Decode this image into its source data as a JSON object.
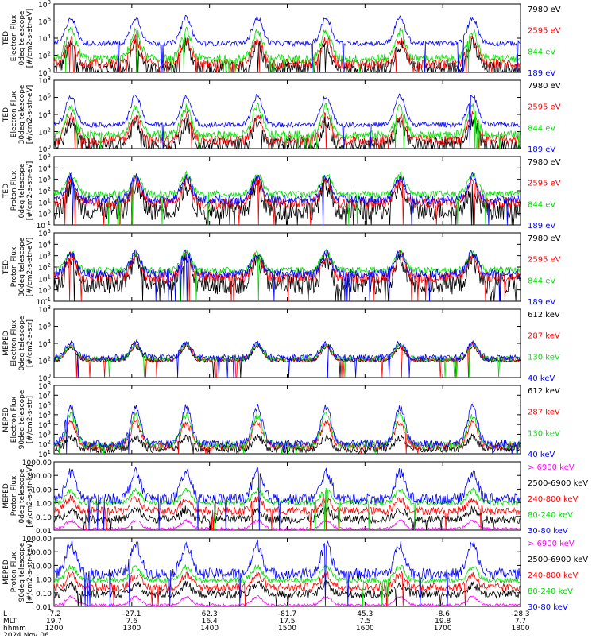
{
  "chart_data": {
    "type": "line",
    "date": "2024 Nov 06",
    "x_axis_labels": {
      "row_labels": [
        "L",
        "MLT",
        "hhmm"
      ],
      "ticks": [
        {
          "lon": "-7.2",
          "mlt": "19.7",
          "time": "1200"
        },
        {
          "lon": "-27.1",
          "mlt": "7.6",
          "time": "1300"
        },
        {
          "lon": "62.3",
          "mlt": "16.4",
          "time": "1400"
        },
        {
          "lon": "-81.7",
          "mlt": "17.5",
          "time": "1500"
        },
        {
          "lon": "45.3",
          "mlt": "7.5",
          "time": "1600"
        },
        {
          "lon": "-8.6",
          "mlt": "19.8",
          "time": "1700"
        },
        {
          "lon": "-28.3",
          "mlt": "7.7",
          "time": "1800"
        }
      ]
    },
    "xlim_minutes": [
      0,
      360
    ],
    "passes_minutes": [
      13,
      63,
      102,
      157,
      210,
      267,
      323
    ],
    "panels": [
      {
        "id": "ted-e-0",
        "ylabel": [
          "TED",
          "Electron Flux",
          "0deg telescope",
          "[#/cm2-s-str-eV]"
        ],
        "ylim_log": [
          0,
          8
        ],
        "ticks": [
          "10^0",
          "10^2",
          "10^4",
          "10^6",
          "10^8"
        ],
        "series": [
          {
            "name": "7980 eV",
            "color": "#000000",
            "base": 0.4,
            "peak": 3.2,
            "noise": 0.9
          },
          {
            "name": "2595 eV",
            "color": "#ff0000",
            "base": 1.0,
            "peak": 3.8,
            "noise": 0.6
          },
          {
            "name": "844 eV",
            "color": "#00dd00",
            "base": 1.6,
            "peak": 4.8,
            "noise": 0.5
          },
          {
            "name": "189 eV",
            "color": "#0000ff",
            "base": 3.4,
            "peak": 6.4,
            "noise": 0.3
          }
        ]
      },
      {
        "id": "ted-e-30",
        "ylabel": [
          "TED",
          "Electron Flux",
          "30deg telescope",
          "[#/cm2-s-str-eV]"
        ],
        "ylim_log": [
          0,
          8
        ],
        "ticks": [
          "10^0",
          "10^2",
          "10^4",
          "10^6",
          "10^8"
        ],
        "series": [
          {
            "name": "7980 eV",
            "color": "#000000",
            "base": 0.4,
            "peak": 3.0,
            "noise": 0.9
          },
          {
            "name": "2595 eV",
            "color": "#ff0000",
            "base": 1.0,
            "peak": 3.8,
            "noise": 0.6
          },
          {
            "name": "844 eV",
            "color": "#00dd00",
            "base": 1.6,
            "peak": 4.8,
            "noise": 0.5
          },
          {
            "name": "189 eV",
            "color": "#0000ff",
            "base": 2.8,
            "peak": 6.2,
            "noise": 0.3
          }
        ]
      },
      {
        "id": "ted-p-0",
        "ylabel": [
          "TED",
          "Proton Flux",
          "0deg telescope",
          "[#/cm2-s-str-eV]"
        ],
        "ylim_log": [
          -1,
          5
        ],
        "ticks": [
          "10^-1",
          "10^0",
          "10^1",
          "10^2",
          "10^3",
          "10^4",
          "10^5"
        ],
        "series": [
          {
            "name": "7980 eV",
            "color": "#000000",
            "base": 0.3,
            "peak": 2.4,
            "noise": 0.9
          },
          {
            "name": "2595 eV",
            "color": "#ff0000",
            "base": 0.9,
            "peak": 2.9,
            "noise": 0.5
          },
          {
            "name": "844 eV",
            "color": "#00dd00",
            "base": 1.7,
            "peak": 3.4,
            "noise": 0.3
          },
          {
            "name": "189 eV",
            "color": "#0000ff",
            "base": 1.2,
            "peak": 3.2,
            "noise": 0.4
          }
        ]
      },
      {
        "id": "ted-p-30",
        "ylabel": [
          "TED",
          "Proton Flux",
          "30deg telescope",
          "[#/cm2-s-str-eV]"
        ],
        "ylim_log": [
          -1,
          5
        ],
        "ticks": [
          "10^-1",
          "10^0",
          "10^1",
          "10^2",
          "10^3",
          "10^4",
          "10^5"
        ],
        "series": [
          {
            "name": "7980 eV",
            "color": "#000000",
            "base": 0.5,
            "peak": 2.6,
            "noise": 0.9
          },
          {
            "name": "2595 eV",
            "color": "#ff0000",
            "base": 1.1,
            "peak": 3.0,
            "noise": 0.5
          },
          {
            "name": "844 eV",
            "color": "#00dd00",
            "base": 1.7,
            "peak": 3.3,
            "noise": 0.3
          },
          {
            "name": "189 eV",
            "color": "#0000ff",
            "base": 1.4,
            "peak": 3.2,
            "noise": 0.4
          }
        ]
      },
      {
        "id": "meped-e-0",
        "ylabel": [
          "MEPED",
          "Electron Flux",
          "0deg telescope",
          "[#/cm2-s-str]"
        ],
        "ylim_log": [
          0,
          8
        ],
        "ticks": [
          "10^0",
          "10^2",
          "10^4",
          "10^6",
          "10^8"
        ],
        "series": [
          {
            "name": "612 keV",
            "color": "#000000",
            "base": 2.0,
            "peak": 3.6,
            "noise": 0.2
          },
          {
            "name": "287 keV",
            "color": "#ff0000",
            "base": 2.1,
            "peak": 3.8,
            "noise": 0.3
          },
          {
            "name": "130 keV",
            "color": "#00dd00",
            "base": 2.2,
            "peak": 3.9,
            "noise": 0.3
          },
          {
            "name": "40 keV",
            "color": "#0000ff",
            "base": 2.3,
            "peak": 4.0,
            "noise": 0.4
          }
        ]
      },
      {
        "id": "meped-e-90",
        "ylabel": [
          "MEPED",
          "Electron Flux",
          "90deg telescope",
          "[#/cm2-s-str]"
        ],
        "ylim_log": [
          1,
          8
        ],
        "ticks": [
          "10^1",
          "10^2",
          "10^3",
          "10^4",
          "10^5",
          "10^6",
          "10^7",
          "10^8"
        ],
        "series": [
          {
            "name": "612 keV",
            "color": "#000000",
            "base": 1.5,
            "peak": 2.7,
            "noise": 0.4
          },
          {
            "name": "287 keV",
            "color": "#ff0000",
            "base": 1.8,
            "peak": 4.2,
            "noise": 0.4
          },
          {
            "name": "130 keV",
            "color": "#00dd00",
            "base": 1.9,
            "peak": 5.0,
            "noise": 0.4
          },
          {
            "name": "40 keV",
            "color": "#0000ff",
            "base": 2.0,
            "peak": 5.8,
            "noise": 0.4
          }
        ]
      },
      {
        "id": "meped-p-0",
        "ylabel": [
          "MEPED",
          "Proton Flux",
          "0deg telescope",
          "[#/cm2-s-str-keV]"
        ],
        "ylim_log": [
          -2,
          3
        ],
        "ticks": [
          "0.01",
          "0.10",
          "1.00",
          "10.00",
          "100.00",
          "1000.00"
        ],
        "series": [
          {
            "name": "> 6900 keV",
            "color": "#ff00ff",
            "base": -1.9,
            "peak": -1.3,
            "noise": 0.1
          },
          {
            "name": "2500-6900 keV",
            "color": "#000000",
            "base": -1.2,
            "peak": -0.5,
            "noise": 0.3
          },
          {
            "name": "240-800 keV",
            "color": "#ff0000",
            "base": -0.6,
            "peak": 0.3,
            "noise": 0.3
          },
          {
            "name": "80-240 keV",
            "color": "#00dd00",
            "base": 0.0,
            "peak": 0.9,
            "noise": 0.2
          },
          {
            "name": "30-80 keV",
            "color": "#0000ff",
            "base": 0.3,
            "peak": 2.2,
            "noise": 0.4
          }
        ]
      },
      {
        "id": "meped-p-90",
        "ylabel": [
          "MEPED",
          "Proton Flux",
          "90deg telescope",
          "[#/cm2-s-str-keV]"
        ],
        "ylim_log": [
          -2,
          3
        ],
        "ticks": [
          "0.01",
          "0.10",
          "1.00",
          "10.00",
          "100.00",
          "1000.00"
        ],
        "series": [
          {
            "name": "> 6900 keV",
            "color": "#ff00ff",
            "base": -1.9,
            "peak": -1.3,
            "noise": 0.1
          },
          {
            "name": "2500-6900 keV",
            "color": "#000000",
            "base": -1.1,
            "peak": -0.4,
            "noise": 0.3
          },
          {
            "name": "240-800 keV",
            "color": "#ff0000",
            "base": -0.6,
            "peak": 0.3,
            "noise": 0.3
          },
          {
            "name": "80-240 keV",
            "color": "#00dd00",
            "base": -0.1,
            "peak": 0.9,
            "noise": 0.2
          },
          {
            "name": "30-80 keV",
            "color": "#0000ff",
            "base": 0.4,
            "peak": 2.5,
            "noise": 0.4
          }
        ]
      }
    ]
  }
}
